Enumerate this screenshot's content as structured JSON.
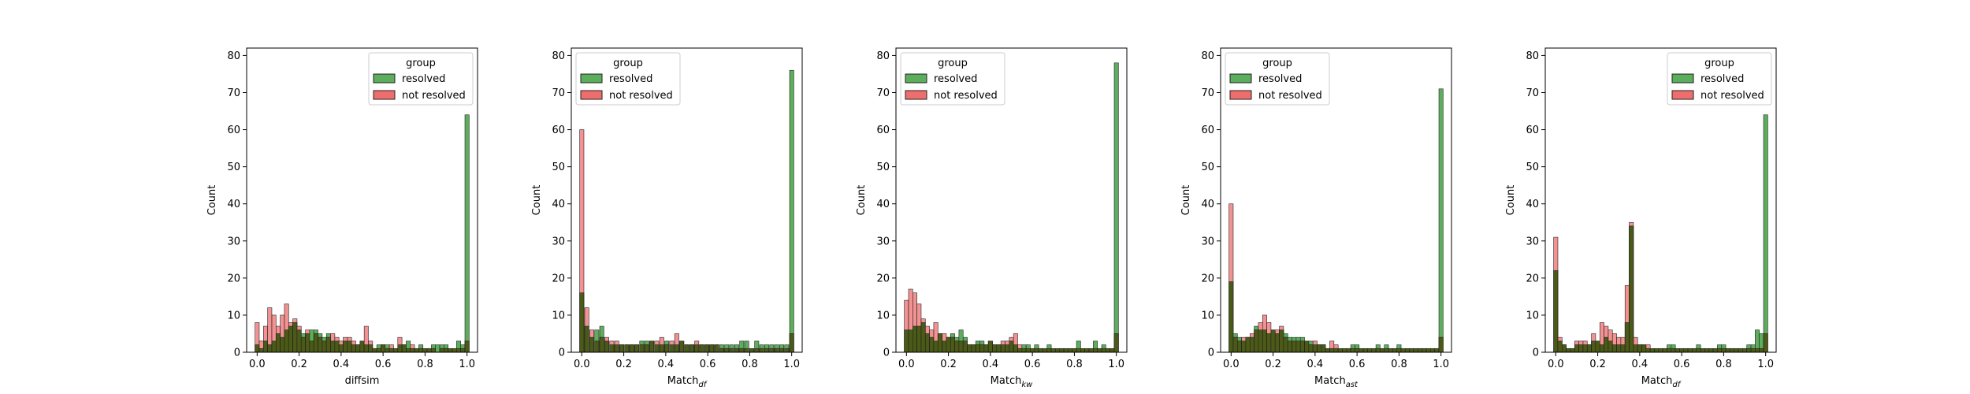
{
  "legend_title": "group",
  "ylabel": "Count",
  "group_names": [
    "resolved",
    "not resolved"
  ],
  "colors": {
    "resolved_fill": "#5cad5c",
    "not_resolved_fill": "#ee6e6e",
    "overlap_fill": "#4b5a16",
    "edge": "#222222"
  },
  "chart_data": [
    {
      "type": "bar",
      "xlabel_main": "diffsim",
      "xlabel_sub": "",
      "legend_pos": "top-right",
      "xlim": [
        -0.05,
        1.05
      ],
      "ylim": [
        0,
        82
      ],
      "xticks": [
        "0.0",
        "0.2",
        "0.4",
        "0.6",
        "0.8",
        "1.0"
      ],
      "yticks": [
        "0",
        "10",
        "20",
        "30",
        "40",
        "50",
        "60",
        "70",
        "80"
      ],
      "bin_width": 0.02,
      "series": [
        {
          "name": "resolved",
          "values": [
            2,
            1,
            3,
            2,
            3,
            5,
            4,
            6,
            7,
            8,
            6,
            5,
            5,
            6,
            6,
            5,
            4,
            5,
            3,
            3,
            2,
            3,
            3,
            2,
            2,
            3,
            2,
            2,
            1,
            2,
            2,
            2,
            1,
            1,
            2,
            2,
            3,
            1,
            1,
            2,
            1,
            1,
            2,
            2,
            2,
            2,
            1,
            1,
            3,
            2,
            64
          ]
        },
        {
          "name": "not resolved",
          "values": [
            8,
            3,
            7,
            12,
            10,
            7,
            10,
            13,
            8,
            9,
            7,
            4,
            6,
            3,
            5,
            4,
            3,
            4,
            5,
            4,
            3,
            4,
            4,
            3,
            2,
            3,
            7,
            3,
            1,
            1,
            2,
            1,
            2,
            1,
            4,
            2,
            1,
            2,
            1,
            1,
            1,
            1,
            1,
            0,
            1,
            1,
            1,
            1,
            1,
            1,
            3
          ]
        }
      ]
    },
    {
      "type": "bar",
      "xlabel_main": "Match",
      "xlabel_sub": "df",
      "legend_pos": "top-left",
      "xlim": [
        -0.05,
        1.05
      ],
      "ylim": [
        0,
        82
      ],
      "xticks": [
        "0.0",
        "0.2",
        "0.4",
        "0.6",
        "0.8",
        "1.0"
      ],
      "yticks": [
        "0",
        "10",
        "20",
        "30",
        "40",
        "50",
        "60",
        "70",
        "80"
      ],
      "bin_width": 0.02,
      "series": [
        {
          "name": "resolved",
          "values": [
            16,
            7,
            4,
            6,
            7,
            3,
            2,
            2,
            2,
            2,
            2,
            2,
            3,
            3,
            3,
            2,
            2,
            3,
            2,
            2,
            3,
            2,
            2,
            2,
            2,
            2,
            2,
            2,
            2,
            2,
            2,
            2,
            3,
            3,
            1,
            3,
            2,
            2,
            2,
            2,
            2,
            2,
            76
          ]
        },
        {
          "name": "not resolved",
          "values": [
            60,
            12,
            6,
            3,
            4,
            4,
            3,
            3,
            2,
            2,
            2,
            2,
            2,
            2,
            3,
            3,
            4,
            2,
            3,
            5,
            3,
            2,
            2,
            3,
            2,
            2,
            2,
            2,
            1,
            1,
            1,
            1,
            1,
            1,
            1,
            1,
            1,
            1,
            1,
            1,
            1,
            1,
            5
          ]
        }
      ]
    },
    {
      "type": "bar",
      "xlabel_main": "Match",
      "xlabel_sub": "kw",
      "legend_pos": "top-left",
      "xlim": [
        -0.05,
        1.05
      ],
      "ylim": [
        0,
        82
      ],
      "xticks": [
        "0.0",
        "0.2",
        "0.4",
        "0.6",
        "0.8",
        "1.0"
      ],
      "yticks": [
        "0",
        "10",
        "20",
        "30",
        "40",
        "50",
        "60",
        "70",
        "80"
      ],
      "bin_width": 0.02,
      "series": [
        {
          "name": "resolved",
          "values": [
            6,
            6,
            7,
            7,
            8,
            5,
            4,
            3,
            5,
            3,
            4,
            5,
            4,
            6,
            4,
            2,
            2,
            3,
            3,
            2,
            3,
            2,
            2,
            2,
            2,
            3,
            2,
            1,
            2,
            2,
            1,
            2,
            1,
            1,
            2,
            1,
            1,
            1,
            1,
            1,
            1,
            3,
            1,
            1,
            1,
            3,
            1,
            2,
            1,
            1,
            78
          ]
        },
        {
          "name": "not resolved",
          "values": [
            14,
            17,
            16,
            13,
            9,
            7,
            6,
            8,
            5,
            5,
            4,
            4,
            3,
            3,
            3,
            2,
            2,
            2,
            2,
            2,
            3,
            2,
            2,
            3,
            3,
            4,
            5,
            2,
            1,
            1,
            1,
            1,
            1,
            1,
            1,
            1,
            1,
            1,
            1,
            1,
            1,
            1,
            1,
            1,
            1,
            1,
            1,
            1,
            1,
            1,
            5
          ]
        }
      ]
    },
    {
      "type": "bar",
      "xlabel_main": "Match",
      "xlabel_sub": "ast",
      "legend_pos": "top-left",
      "xlim": [
        -0.05,
        1.05
      ],
      "ylim": [
        0,
        82
      ],
      "xticks": [
        "0.0",
        "0.2",
        "0.4",
        "0.6",
        "0.8",
        "1.0"
      ],
      "yticks": [
        "0",
        "10",
        "20",
        "30",
        "40",
        "50",
        "60",
        "70",
        "80"
      ],
      "bin_width": 0.02,
      "series": [
        {
          "name": "resolved",
          "values": [
            19,
            5,
            4,
            3,
            4,
            4,
            7,
            6,
            6,
            5,
            6,
            5,
            6,
            5,
            4,
            4,
            4,
            4,
            3,
            3,
            2,
            2,
            2,
            1,
            1,
            1,
            1,
            1,
            1,
            2,
            2,
            1,
            1,
            1,
            1,
            2,
            1,
            2,
            1,
            1,
            2,
            1,
            1,
            1,
            1,
            1,
            1,
            1,
            1,
            1,
            71
          ]
        },
        {
          "name": "not resolved",
          "values": [
            40,
            4,
            3,
            4,
            4,
            5,
            6,
            8,
            10,
            8,
            6,
            6,
            7,
            4,
            3,
            3,
            3,
            3,
            3,
            2,
            3,
            2,
            2,
            1,
            3,
            2,
            1,
            1,
            1,
            1,
            1,
            1,
            1,
            1,
            1,
            1,
            1,
            1,
            1,
            1,
            1,
            1,
            1,
            1,
            1,
            1,
            1,
            1,
            1,
            1,
            4
          ]
        }
      ]
    },
    {
      "type": "bar",
      "xlabel_main": "Match",
      "xlabel_sub": "df",
      "legend_pos": "top-right",
      "xlim": [
        -0.05,
        1.05
      ],
      "ylim": [
        0,
        82
      ],
      "xticks": [
        "0.0",
        "0.2",
        "0.4",
        "0.6",
        "0.8",
        "1.0"
      ],
      "yticks": [
        "0",
        "10",
        "20",
        "30",
        "40",
        "50",
        "60",
        "70",
        "80"
      ],
      "bin_width": 0.02,
      "series": [
        {
          "name": "resolved",
          "values": [
            22,
            3,
            2,
            1,
            1,
            2,
            2,
            2,
            2,
            3,
            3,
            2,
            4,
            3,
            2,
            2,
            2,
            8,
            34,
            2,
            2,
            2,
            1,
            1,
            1,
            1,
            1,
            2,
            2,
            1,
            1,
            1,
            1,
            1,
            2,
            1,
            1,
            1,
            1,
            2,
            2,
            1,
            1,
            1,
            1,
            1,
            2,
            2,
            6,
            5,
            64
          ]
        },
        {
          "name": "not resolved",
          "values": [
            31,
            4,
            2,
            1,
            1,
            3,
            3,
            3,
            2,
            5,
            3,
            8,
            7,
            6,
            5,
            4,
            4,
            18,
            35,
            4,
            2,
            2,
            2,
            1,
            1,
            1,
            1,
            1,
            1,
            1,
            1,
            1,
            1,
            1,
            1,
            1,
            1,
            1,
            1,
            1,
            1,
            1,
            1,
            1,
            1,
            1,
            1,
            1,
            1,
            1,
            5
          ]
        }
      ]
    }
  ]
}
